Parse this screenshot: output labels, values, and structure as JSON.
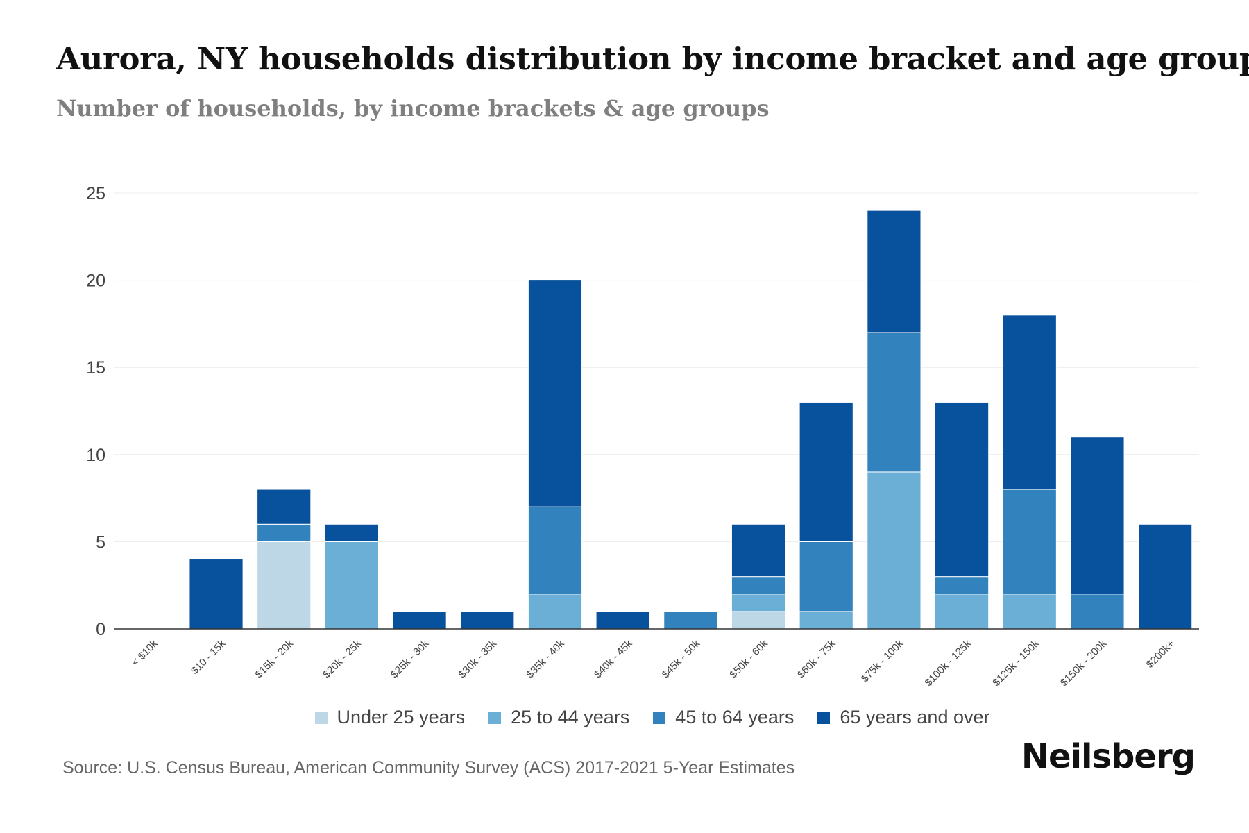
{
  "header": {
    "title": "Aurora, NY households distribution by income bracket and age group",
    "subtitle": "Number of households, by income brackets & age groups"
  },
  "footer": {
    "source": "Source: U.S. Census Bureau, American Community Survey (ACS) 2017-2021 5-Year Estimates",
    "brand": "Neilsberg"
  },
  "chart_data": {
    "type": "bar",
    "stacked": true,
    "title": "Aurora, NY households distribution by income bracket and age group",
    "subtitle": "Number of households, by income brackets & age groups",
    "xlabel": "",
    "ylabel": "",
    "ylim": [
      0,
      25
    ],
    "yticks": [
      0,
      5,
      10,
      15,
      20,
      25
    ],
    "grid": true,
    "legend_position": "bottom-center",
    "categories": [
      "< $10k",
      "$10 - 15k",
      "$15k - 20k",
      "$20k - 25k",
      "$25k - 30k",
      "$30k - 35k",
      "$35k - 40k",
      "$40k - 45k",
      "$45k - 50k",
      "$50k - 60k",
      "$60k - 75k",
      "$75k - 100k",
      "$100k - 125k",
      "$125k - 150k",
      "$150k - 200k",
      "$200k+"
    ],
    "series": [
      {
        "name": "Under 25 years",
        "color": "#bdd7e7",
        "values": [
          0,
          0,
          5,
          0,
          0,
          0,
          0,
          0,
          0,
          1,
          0,
          0,
          0,
          0,
          0,
          0
        ]
      },
      {
        "name": "25 to 44 years",
        "color": "#6baed6",
        "values": [
          0,
          0,
          0,
          5,
          0,
          0,
          2,
          0,
          0,
          1,
          1,
          9,
          2,
          2,
          0,
          0
        ]
      },
      {
        "name": "45 to 64 years",
        "color": "#3182bd",
        "values": [
          0,
          0,
          1,
          0,
          0,
          0,
          5,
          0,
          1,
          1,
          4,
          8,
          1,
          6,
          2,
          0
        ]
      },
      {
        "name": "65 years and over",
        "color": "#08519c",
        "values": [
          0,
          4,
          2,
          1,
          1,
          1,
          13,
          1,
          0,
          3,
          8,
          7,
          10,
          10,
          9,
          6
        ]
      }
    ]
  }
}
